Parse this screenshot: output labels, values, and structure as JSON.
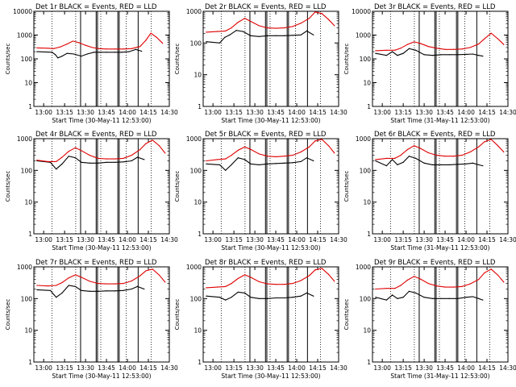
{
  "figure": {
    "type": "multi-panel-lightcurve",
    "grid": "3x3",
    "colors": {
      "events": "#000000",
      "lld": "#e00000",
      "axes": "#000000",
      "background": "#ffffff"
    }
  },
  "chart_data": [
    {
      "type": "line",
      "title": "Det 1r  BLACK = Events, RED = LLD",
      "xlabel": "Start Time (30-May-11 12:53:00)",
      "ylabel": "Counts/sec",
      "y_scale": "log",
      "ylim": [
        1,
        10000
      ],
      "xlim": [
        12.883,
        14.5
      ],
      "x_ticks": [
        "13:00",
        "13:15",
        "13:30",
        "13:45",
        "14:00",
        "14:15",
        "14:30"
      ],
      "y_ticks": [
        "1",
        "10",
        "100",
        "1000",
        "10000"
      ],
      "series": [
        {
          "name": "BLACK = Events",
          "color": "#000000",
          "x": [
            12.92,
            13.1,
            13.14,
            13.17,
            13.22,
            13.28,
            13.36,
            13.45,
            13.52,
            13.6,
            13.67,
            13.75,
            13.85,
            13.93,
            14.02,
            14.1,
            14.17
          ],
          "y": [
            200,
            190,
            150,
            110,
            130,
            170,
            160,
            130,
            160,
            190,
            190,
            190,
            190,
            190,
            200,
            250,
            210
          ]
        },
        {
          "name": "RED = LLD",
          "color": "#e00000",
          "x": [
            12.92,
            13.05,
            13.12,
            13.2,
            13.28,
            13.35,
            13.42,
            13.5,
            13.58,
            13.66,
            13.75,
            13.85,
            13.95,
            14.05,
            14.15,
            14.22,
            14.28,
            14.35,
            14.42
          ],
          "y": [
            290,
            280,
            270,
            320,
            420,
            560,
            480,
            370,
            300,
            270,
            260,
            260,
            260,
            270,
            330,
            600,
            1200,
            800,
            450
          ]
        }
      ]
    },
    {
      "type": "line",
      "title": "Det 2r  BLACK = Events, RED = LLD",
      "xlabel": "Start Time (30-May-11 12:53:00)",
      "ylabel": "Counts/sec",
      "y_scale": "log",
      "ylim": [
        1,
        1000
      ],
      "xlim": [
        12.883,
        14.5
      ],
      "x_ticks": [
        "13:00",
        "13:15",
        "13:30",
        "13:45",
        "14:00",
        "14:15",
        "14:30"
      ],
      "y_ticks": [
        "1",
        "10",
        "100",
        "1000"
      ],
      "series": [
        {
          "name": "BLACK = Events",
          "color": "#000000",
          "x": [
            12.92,
            13.08,
            13.14,
            13.2,
            13.28,
            13.36,
            13.45,
            13.55,
            13.65,
            13.75,
            13.85,
            13.95,
            14.05,
            14.12,
            14.2
          ],
          "y": [
            110,
            100,
            150,
            180,
            250,
            230,
            170,
            160,
            170,
            170,
            170,
            175,
            180,
            240,
            180
          ]
        },
        {
          "name": "RED = LLD",
          "color": "#e00000",
          "x": [
            12.92,
            13.05,
            13.15,
            13.22,
            13.3,
            13.38,
            13.45,
            13.55,
            13.65,
            13.75,
            13.85,
            13.95,
            14.05,
            14.15,
            14.22,
            14.3,
            14.38,
            14.45
          ],
          "y": [
            220,
            230,
            240,
            300,
            450,
            600,
            480,
            350,
            300,
            290,
            300,
            330,
            420,
            600,
            950,
            850,
            550,
            350
          ]
        }
      ]
    },
    {
      "type": "line",
      "title": "Det 3r  BLACK = Events, RED = LLD",
      "xlabel": "Start Time (31-May-11 12:53:00)",
      "ylabel": "Counts/sec",
      "y_scale": "log",
      "ylim": [
        1,
        10000
      ],
      "xlim": [
        12.883,
        14.5
      ],
      "x_ticks": [
        "13:00",
        "13:15",
        "13:30",
        "13:45",
        "14:00",
        "14:15",
        "14:30"
      ],
      "y_ticks": [
        "1",
        "10",
        "100",
        "1000",
        "10000"
      ],
      "series": [
        {
          "name": "BLACK = Events",
          "color": "#000000",
          "x": [
            12.92,
            13.05,
            13.12,
            13.18,
            13.25,
            13.32,
            13.4,
            13.5,
            13.6,
            13.7,
            13.8,
            13.9,
            14.0,
            14.08,
            14.15,
            14.2
          ],
          "y": [
            170,
            140,
            200,
            140,
            170,
            270,
            230,
            150,
            140,
            150,
            150,
            150,
            155,
            160,
            140,
            130
          ]
        },
        {
          "name": "RED = LLD",
          "color": "#e00000",
          "x": [
            12.92,
            13.05,
            13.15,
            13.22,
            13.3,
            13.38,
            13.45,
            13.55,
            13.65,
            13.75,
            13.85,
            13.95,
            14.05,
            14.15,
            14.22,
            14.3,
            14.38,
            14.45
          ],
          "y": [
            220,
            230,
            230,
            280,
            400,
            520,
            450,
            330,
            280,
            250,
            250,
            260,
            300,
            420,
            700,
            1200,
            700,
            400
          ]
        }
      ]
    },
    {
      "type": "line",
      "title": "Det 4r  BLACK = Events, RED = LLD",
      "xlabel": "Start Time (30-May-11 12:53:00)",
      "ylabel": "Counts/sec",
      "y_scale": "log",
      "ylim": [
        1,
        1000
      ],
      "xlim": [
        12.883,
        14.5
      ],
      "x_ticks": [
        "13:00",
        "13:15",
        "13:30",
        "13:45",
        "14:00",
        "14:15",
        "14:30"
      ],
      "y_ticks": [
        "1",
        "10",
        "100",
        "1000"
      ],
      "series": [
        {
          "name": "BLACK = Events",
          "color": "#000000",
          "x": [
            12.92,
            13.08,
            13.15,
            13.22,
            13.3,
            13.38,
            13.45,
            13.55,
            13.65,
            13.75,
            13.85,
            13.95,
            14.05,
            14.12,
            14.2
          ],
          "y": [
            200,
            180,
            110,
            160,
            280,
            250,
            180,
            170,
            170,
            180,
            180,
            185,
            200,
            260,
            220
          ]
        },
        {
          "name": "RED = LLD",
          "color": "#e00000",
          "x": [
            12.92,
            13.05,
            13.15,
            13.22,
            13.3,
            13.38,
            13.45,
            13.55,
            13.65,
            13.75,
            13.85,
            13.95,
            14.05,
            14.15,
            14.22,
            14.3,
            14.38,
            14.45
          ],
          "y": [
            210,
            190,
            190,
            260,
            400,
            520,
            420,
            300,
            240,
            230,
            230,
            240,
            300,
            450,
            700,
            900,
            600,
            350
          ]
        }
      ]
    },
    {
      "type": "line",
      "title": "Det 5r  BLACK = Events, RED = LLD",
      "xlabel": "Start Time (30-May-11 12:53:00)",
      "ylabel": "Counts/sec",
      "y_scale": "log",
      "ylim": [
        1,
        1000
      ],
      "xlim": [
        12.883,
        14.5
      ],
      "x_ticks": [
        "13:00",
        "13:15",
        "13:30",
        "13:45",
        "14:00",
        "14:15",
        "14:30"
      ],
      "y_ticks": [
        "1",
        "10",
        "100",
        "1000"
      ],
      "series": [
        {
          "name": "BLACK = Events",
          "color": "#000000",
          "x": [
            12.92,
            13.08,
            13.15,
            13.22,
            13.3,
            13.38,
            13.45,
            13.55,
            13.65,
            13.75,
            13.85,
            13.95,
            14.05,
            14.12,
            14.2
          ],
          "y": [
            160,
            150,
            100,
            150,
            250,
            220,
            160,
            150,
            160,
            165,
            170,
            175,
            190,
            250,
            200
          ]
        },
        {
          "name": "RED = LLD",
          "color": "#e00000",
          "x": [
            12.92,
            13.05,
            13.15,
            13.22,
            13.3,
            13.38,
            13.45,
            13.55,
            13.65,
            13.75,
            13.85,
            13.95,
            14.05,
            14.15,
            14.22,
            14.3,
            14.38,
            14.45
          ],
          "y": [
            200,
            220,
            230,
            300,
            430,
            550,
            460,
            330,
            280,
            270,
            280,
            300,
            380,
            550,
            850,
            950,
            600,
            350
          ]
        }
      ]
    },
    {
      "type": "line",
      "title": "Det 6r  BLACK = Events, RED = LLD",
      "xlabel": "Start Time (31-May-11 12:53:00)",
      "ylabel": "Counts/sec",
      "y_scale": "log",
      "ylim": [
        1,
        1000
      ],
      "xlim": [
        12.883,
        14.5
      ],
      "x_ticks": [
        "13:00",
        "13:15",
        "13:30",
        "13:45",
        "14:00",
        "14:15",
        "14:30"
      ],
      "y_ticks": [
        "1",
        "10",
        "100",
        "1000"
      ],
      "series": [
        {
          "name": "BLACK = Events",
          "color": "#000000",
          "x": [
            12.92,
            13.05,
            13.12,
            13.18,
            13.25,
            13.32,
            13.4,
            13.5,
            13.6,
            13.7,
            13.8,
            13.9,
            14.0,
            14.08,
            14.15,
            14.2
          ],
          "y": [
            200,
            140,
            220,
            150,
            180,
            280,
            240,
            170,
            150,
            150,
            150,
            155,
            160,
            170,
            150,
            140
          ]
        },
        {
          "name": "RED = LLD",
          "color": "#e00000",
          "x": [
            12.92,
            13.05,
            13.15,
            13.22,
            13.3,
            13.38,
            13.45,
            13.55,
            13.65,
            13.75,
            13.85,
            13.95,
            14.05,
            14.15,
            14.22,
            14.3,
            14.38,
            14.45
          ],
          "y": [
            220,
            240,
            240,
            300,
            450,
            600,
            500,
            360,
            300,
            280,
            280,
            300,
            380,
            550,
            800,
            950,
            600,
            380
          ]
        }
      ]
    },
    {
      "type": "line",
      "title": "Det 7r  BLACK = Events, RED = LLD",
      "xlabel": "Start Time (30-May-11 12:53:00)",
      "ylabel": "Counts/sec",
      "y_scale": "log",
      "ylim": [
        1,
        1000
      ],
      "xlim": [
        12.883,
        14.5
      ],
      "x_ticks": [
        "13:00",
        "13:15",
        "13:30",
        "13:45",
        "14:00",
        "14:15",
        "14:30"
      ],
      "y_ticks": [
        "1",
        "10",
        "100",
        "1000"
      ],
      "series": [
        {
          "name": "BLACK = Events",
          "color": "#000000",
          "x": [
            12.92,
            13.08,
            13.15,
            13.22,
            13.3,
            13.38,
            13.45,
            13.55,
            13.65,
            13.75,
            13.85,
            13.95,
            14.05,
            14.12,
            14.2
          ],
          "y": [
            190,
            180,
            110,
            150,
            260,
            240,
            180,
            170,
            170,
            175,
            175,
            180,
            200,
            240,
            200
          ]
        },
        {
          "name": "RED = LLD",
          "color": "#e00000",
          "x": [
            12.92,
            13.05,
            13.15,
            13.22,
            13.3,
            13.38,
            13.45,
            13.55,
            13.65,
            13.75,
            13.85,
            13.95,
            14.05,
            14.15,
            14.22,
            14.3,
            14.38,
            14.45
          ],
          "y": [
            260,
            250,
            260,
            320,
            450,
            560,
            470,
            350,
            300,
            290,
            290,
            300,
            360,
            520,
            750,
            850,
            550,
            330
          ]
        }
      ]
    },
    {
      "type": "line",
      "title": "Det 8r  BLACK = Events, RED = LLD",
      "xlabel": "Start Time (30-May-11 12:53:00)",
      "ylabel": "Counts/sec",
      "y_scale": "log",
      "ylim": [
        1,
        1000
      ],
      "xlim": [
        12.883,
        14.5
      ],
      "x_ticks": [
        "13:00",
        "13:15",
        "13:30",
        "13:45",
        "14:00",
        "14:15",
        "14:30"
      ],
      "y_ticks": [
        "1",
        "10",
        "100",
        "1000"
      ],
      "series": [
        {
          "name": "BLACK = Events",
          "color": "#000000",
          "x": [
            12.92,
            13.08,
            13.15,
            13.22,
            13.3,
            13.38,
            13.45,
            13.55,
            13.65,
            13.75,
            13.85,
            13.95,
            14.05,
            14.12,
            14.2
          ],
          "y": [
            120,
            110,
            90,
            110,
            160,
            150,
            110,
            100,
            100,
            105,
            105,
            110,
            120,
            150,
            120
          ]
        },
        {
          "name": "RED = LLD",
          "color": "#e00000",
          "x": [
            12.92,
            13.05,
            13.15,
            13.22,
            13.3,
            13.38,
            13.45,
            13.55,
            13.65,
            13.75,
            13.85,
            13.95,
            14.05,
            14.15,
            14.22,
            14.3,
            14.38,
            14.45
          ],
          "y": [
            220,
            230,
            240,
            300,
            430,
            560,
            470,
            340,
            290,
            280,
            280,
            300,
            370,
            530,
            800,
            900,
            580,
            350
          ]
        }
      ]
    },
    {
      "type": "line",
      "title": "Det 9r  BLACK = Events, RED = LLD",
      "xlabel": "Start Time (31-May-11 12:53:00)",
      "ylabel": "Counts/sec",
      "y_scale": "log",
      "ylim": [
        1,
        1000
      ],
      "xlim": [
        12.883,
        14.5
      ],
      "x_ticks": [
        "13:00",
        "13:15",
        "13:30",
        "13:45",
        "14:00",
        "14:15",
        "14:30"
      ],
      "y_ticks": [
        "1",
        "10",
        "100",
        "1000"
      ],
      "series": [
        {
          "name": "BLACK = Events",
          "color": "#000000",
          "x": [
            12.92,
            13.05,
            13.12,
            13.18,
            13.25,
            13.32,
            13.4,
            13.5,
            13.6,
            13.7,
            13.8,
            13.9,
            14.0,
            14.08,
            14.15,
            14.2
          ],
          "y": [
            110,
            90,
            130,
            100,
            110,
            170,
            150,
            110,
            100,
            100,
            100,
            100,
            110,
            115,
            100,
            90
          ]
        },
        {
          "name": "RED = LLD",
          "color": "#e00000",
          "x": [
            12.92,
            13.05,
            13.15,
            13.22,
            13.3,
            13.38,
            13.45,
            13.55,
            13.65,
            13.75,
            13.85,
            13.95,
            14.05,
            14.15,
            14.22,
            14.3,
            14.38,
            14.45
          ],
          "y": [
            200,
            210,
            210,
            260,
            380,
            500,
            420,
            300,
            250,
            230,
            230,
            240,
            290,
            400,
            650,
            850,
            550,
            330
          ]
        }
      ]
    }
  ]
}
